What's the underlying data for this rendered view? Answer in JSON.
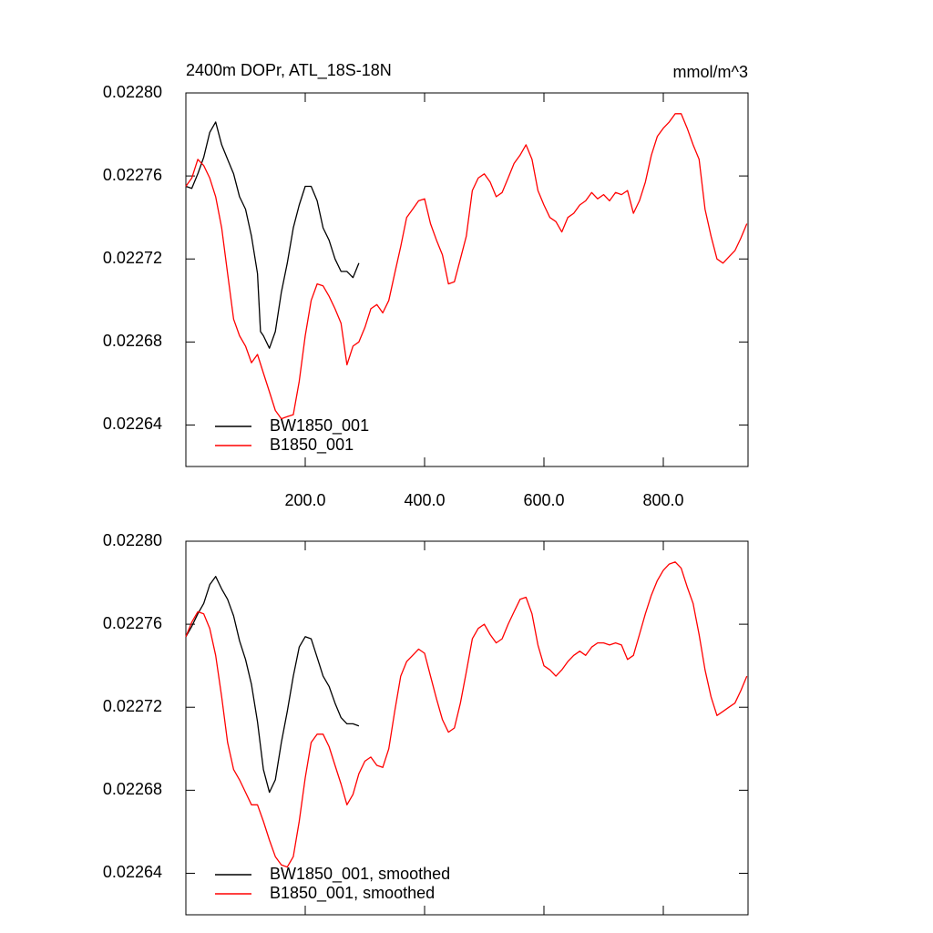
{
  "chart_data": [
    {
      "type": "line",
      "title": "2400m DOPr, ATL_18S-18N",
      "units": "mmol/m^3",
      "xlim": [
        0,
        942
      ],
      "ylim": [
        0.02262,
        0.0228
      ],
      "xticks": [
        {
          "value": 200,
          "label": "200.0"
        },
        {
          "value": 400,
          "label": "400.0"
        },
        {
          "value": 600,
          "label": "600.0"
        },
        {
          "value": 800,
          "label": "800.0"
        }
      ],
      "yticks": [
        0.02264,
        0.02268,
        0.02272,
        0.02276,
        {
          "value": 0.0228,
          "label": "0.02280"
        }
      ],
      "legend": "lower left",
      "series": [
        {
          "name": "BW1850_001",
          "color": "#000000",
          "x": [
            0,
            10,
            20,
            30,
            40,
            50,
            60,
            70,
            80,
            90,
            100,
            110,
            120,
            125,
            130,
            140,
            150,
            160,
            170,
            180,
            190,
            200,
            210,
            220,
            230,
            240,
            250,
            260,
            270,
            280,
            290
          ],
          "values": [
            0.022755,
            0.022754,
            0.022761,
            0.022769,
            0.022781,
            0.022786,
            0.022775,
            0.022768,
            0.022761,
            0.02275,
            0.022744,
            0.022731,
            0.022713,
            0.022685,
            0.022683,
            0.022677,
            0.022685,
            0.022704,
            0.022718,
            0.022735,
            0.022746,
            0.022755,
            0.022755,
            0.022748,
            0.022735,
            0.022729,
            0.02272,
            0.022714,
            0.022714,
            0.022711,
            0.022718
          ]
        },
        {
          "name": "B1850_001",
          "color": "#ff0000",
          "x": [
            0,
            10,
            20,
            30,
            40,
            50,
            60,
            70,
            80,
            90,
            100,
            110,
            120,
            130,
            140,
            150,
            160,
            170,
            180,
            190,
            200,
            210,
            220,
            230,
            240,
            250,
            260,
            270,
            280,
            290,
            300,
            310,
            320,
            330,
            340,
            350,
            360,
            370,
            380,
            390,
            400,
            410,
            420,
            430,
            440,
            450,
            460,
            470,
            480,
            490,
            500,
            510,
            520,
            530,
            540,
            550,
            560,
            570,
            580,
            590,
            600,
            610,
            620,
            630,
            640,
            650,
            660,
            670,
            680,
            690,
            700,
            710,
            720,
            730,
            740,
            750,
            760,
            770,
            780,
            790,
            800,
            810,
            820,
            830,
            840,
            850,
            860,
            870,
            880,
            890,
            900,
            910,
            920,
            930,
            940
          ],
          "values": [
            0.022755,
            0.022759,
            0.022768,
            0.022765,
            0.022759,
            0.02275,
            0.022735,
            0.022713,
            0.022691,
            0.022683,
            0.022678,
            0.02267,
            0.022674,
            0.022665,
            0.022656,
            0.022647,
            0.022643,
            0.022644,
            0.022645,
            0.022661,
            0.022683,
            0.0227,
            0.022708,
            0.022707,
            0.022702,
            0.022696,
            0.022689,
            0.022669,
            0.022678,
            0.02268,
            0.022687,
            0.022696,
            0.022698,
            0.022694,
            0.0227,
            0.022713,
            0.022726,
            0.02274,
            0.022744,
            0.022748,
            0.022749,
            0.022737,
            0.022729,
            0.022722,
            0.022708,
            0.022709,
            0.02272,
            0.022731,
            0.022753,
            0.022759,
            0.022761,
            0.022757,
            0.02275,
            0.022752,
            0.022759,
            0.022766,
            0.02277,
            0.022775,
            0.022768,
            0.022753,
            0.022746,
            0.02274,
            0.022738,
            0.022733,
            0.02274,
            0.022742,
            0.022746,
            0.022748,
            0.022752,
            0.022749,
            0.022751,
            0.022748,
            0.022752,
            0.022751,
            0.022753,
            0.022742,
            0.022748,
            0.022757,
            0.02277,
            0.022779,
            0.022783,
            0.022786,
            0.02279,
            0.02279,
            0.022783,
            0.022775,
            0.022768,
            0.022744,
            0.022731,
            0.02272,
            0.022718,
            0.022721,
            0.022724,
            0.02273,
            0.022737
          ]
        }
      ]
    },
    {
      "type": "line",
      "xlim": [
        0,
        942
      ],
      "ylim": [
        0.02262,
        0.0228
      ],
      "xticks": [
        200,
        400,
        600,
        800
      ],
      "yticks": [
        0.02264,
        0.02268,
        0.02272,
        0.02276,
        {
          "value": 0.0228,
          "label": "0.02280"
        }
      ],
      "legend": "lower left",
      "series": [
        {
          "name": "BW1850_001, smoothed",
          "color": "#000000",
          "x": [
            0,
            10,
            20,
            30,
            40,
            50,
            60,
            70,
            80,
            90,
            100,
            110,
            120,
            130,
            140,
            150,
            160,
            170,
            180,
            190,
            200,
            210,
            220,
            230,
            240,
            250,
            260,
            270,
            280,
            290
          ],
          "values": [
            0.022754,
            0.022759,
            0.022765,
            0.02277,
            0.022779,
            0.022783,
            0.022777,
            0.022772,
            0.022764,
            0.022752,
            0.022743,
            0.022731,
            0.022713,
            0.02269,
            0.022679,
            0.022685,
            0.022703,
            0.022718,
            0.022735,
            0.022749,
            0.022754,
            0.022753,
            0.022744,
            0.022735,
            0.02273,
            0.022722,
            0.022715,
            0.022712,
            0.022712,
            0.022711
          ]
        },
        {
          "name": "B1850_001, smoothed",
          "color": "#ff0000",
          "x": [
            0,
            10,
            20,
            30,
            40,
            50,
            60,
            70,
            80,
            90,
            100,
            110,
            120,
            130,
            140,
            150,
            160,
            170,
            180,
            190,
            200,
            210,
            220,
            230,
            240,
            250,
            260,
            270,
            280,
            290,
            300,
            310,
            320,
            330,
            340,
            350,
            360,
            370,
            380,
            390,
            400,
            410,
            420,
            430,
            440,
            450,
            460,
            470,
            480,
            490,
            500,
            510,
            520,
            530,
            540,
            550,
            560,
            570,
            580,
            590,
            600,
            610,
            620,
            630,
            640,
            650,
            660,
            670,
            680,
            690,
            700,
            710,
            720,
            730,
            740,
            750,
            760,
            770,
            780,
            790,
            800,
            810,
            820,
            830,
            840,
            850,
            860,
            870,
            880,
            890,
            900,
            910,
            920,
            930,
            940
          ],
          "values": [
            0.022754,
            0.022761,
            0.022766,
            0.022765,
            0.022758,
            0.022745,
            0.022725,
            0.022703,
            0.02269,
            0.022685,
            0.022679,
            0.022673,
            0.022673,
            0.022665,
            0.022656,
            0.022648,
            0.022644,
            0.022643,
            0.022648,
            0.022665,
            0.022686,
            0.022703,
            0.022707,
            0.022707,
            0.022701,
            0.022692,
            0.022683,
            0.022673,
            0.022678,
            0.022688,
            0.022694,
            0.022696,
            0.022692,
            0.022691,
            0.0227,
            0.022718,
            0.022735,
            0.022742,
            0.022745,
            0.022748,
            0.022746,
            0.022735,
            0.022724,
            0.022714,
            0.022708,
            0.02271,
            0.022722,
            0.022737,
            0.022753,
            0.022758,
            0.02276,
            0.022755,
            0.022751,
            0.022753,
            0.02276,
            0.022766,
            0.022772,
            0.022773,
            0.022765,
            0.02275,
            0.02274,
            0.022738,
            0.022735,
            0.022738,
            0.022742,
            0.022745,
            0.022747,
            0.022745,
            0.022749,
            0.022751,
            0.022751,
            0.02275,
            0.022751,
            0.02275,
            0.022743,
            0.022745,
            0.022755,
            0.022765,
            0.022774,
            0.022781,
            0.022786,
            0.022789,
            0.02279,
            0.022787,
            0.022778,
            0.02277,
            0.022755,
            0.022738,
            0.022725,
            0.022716,
            0.022718,
            0.02272,
            0.022722,
            0.022728,
            0.022735
          ]
        }
      ]
    }
  ]
}
